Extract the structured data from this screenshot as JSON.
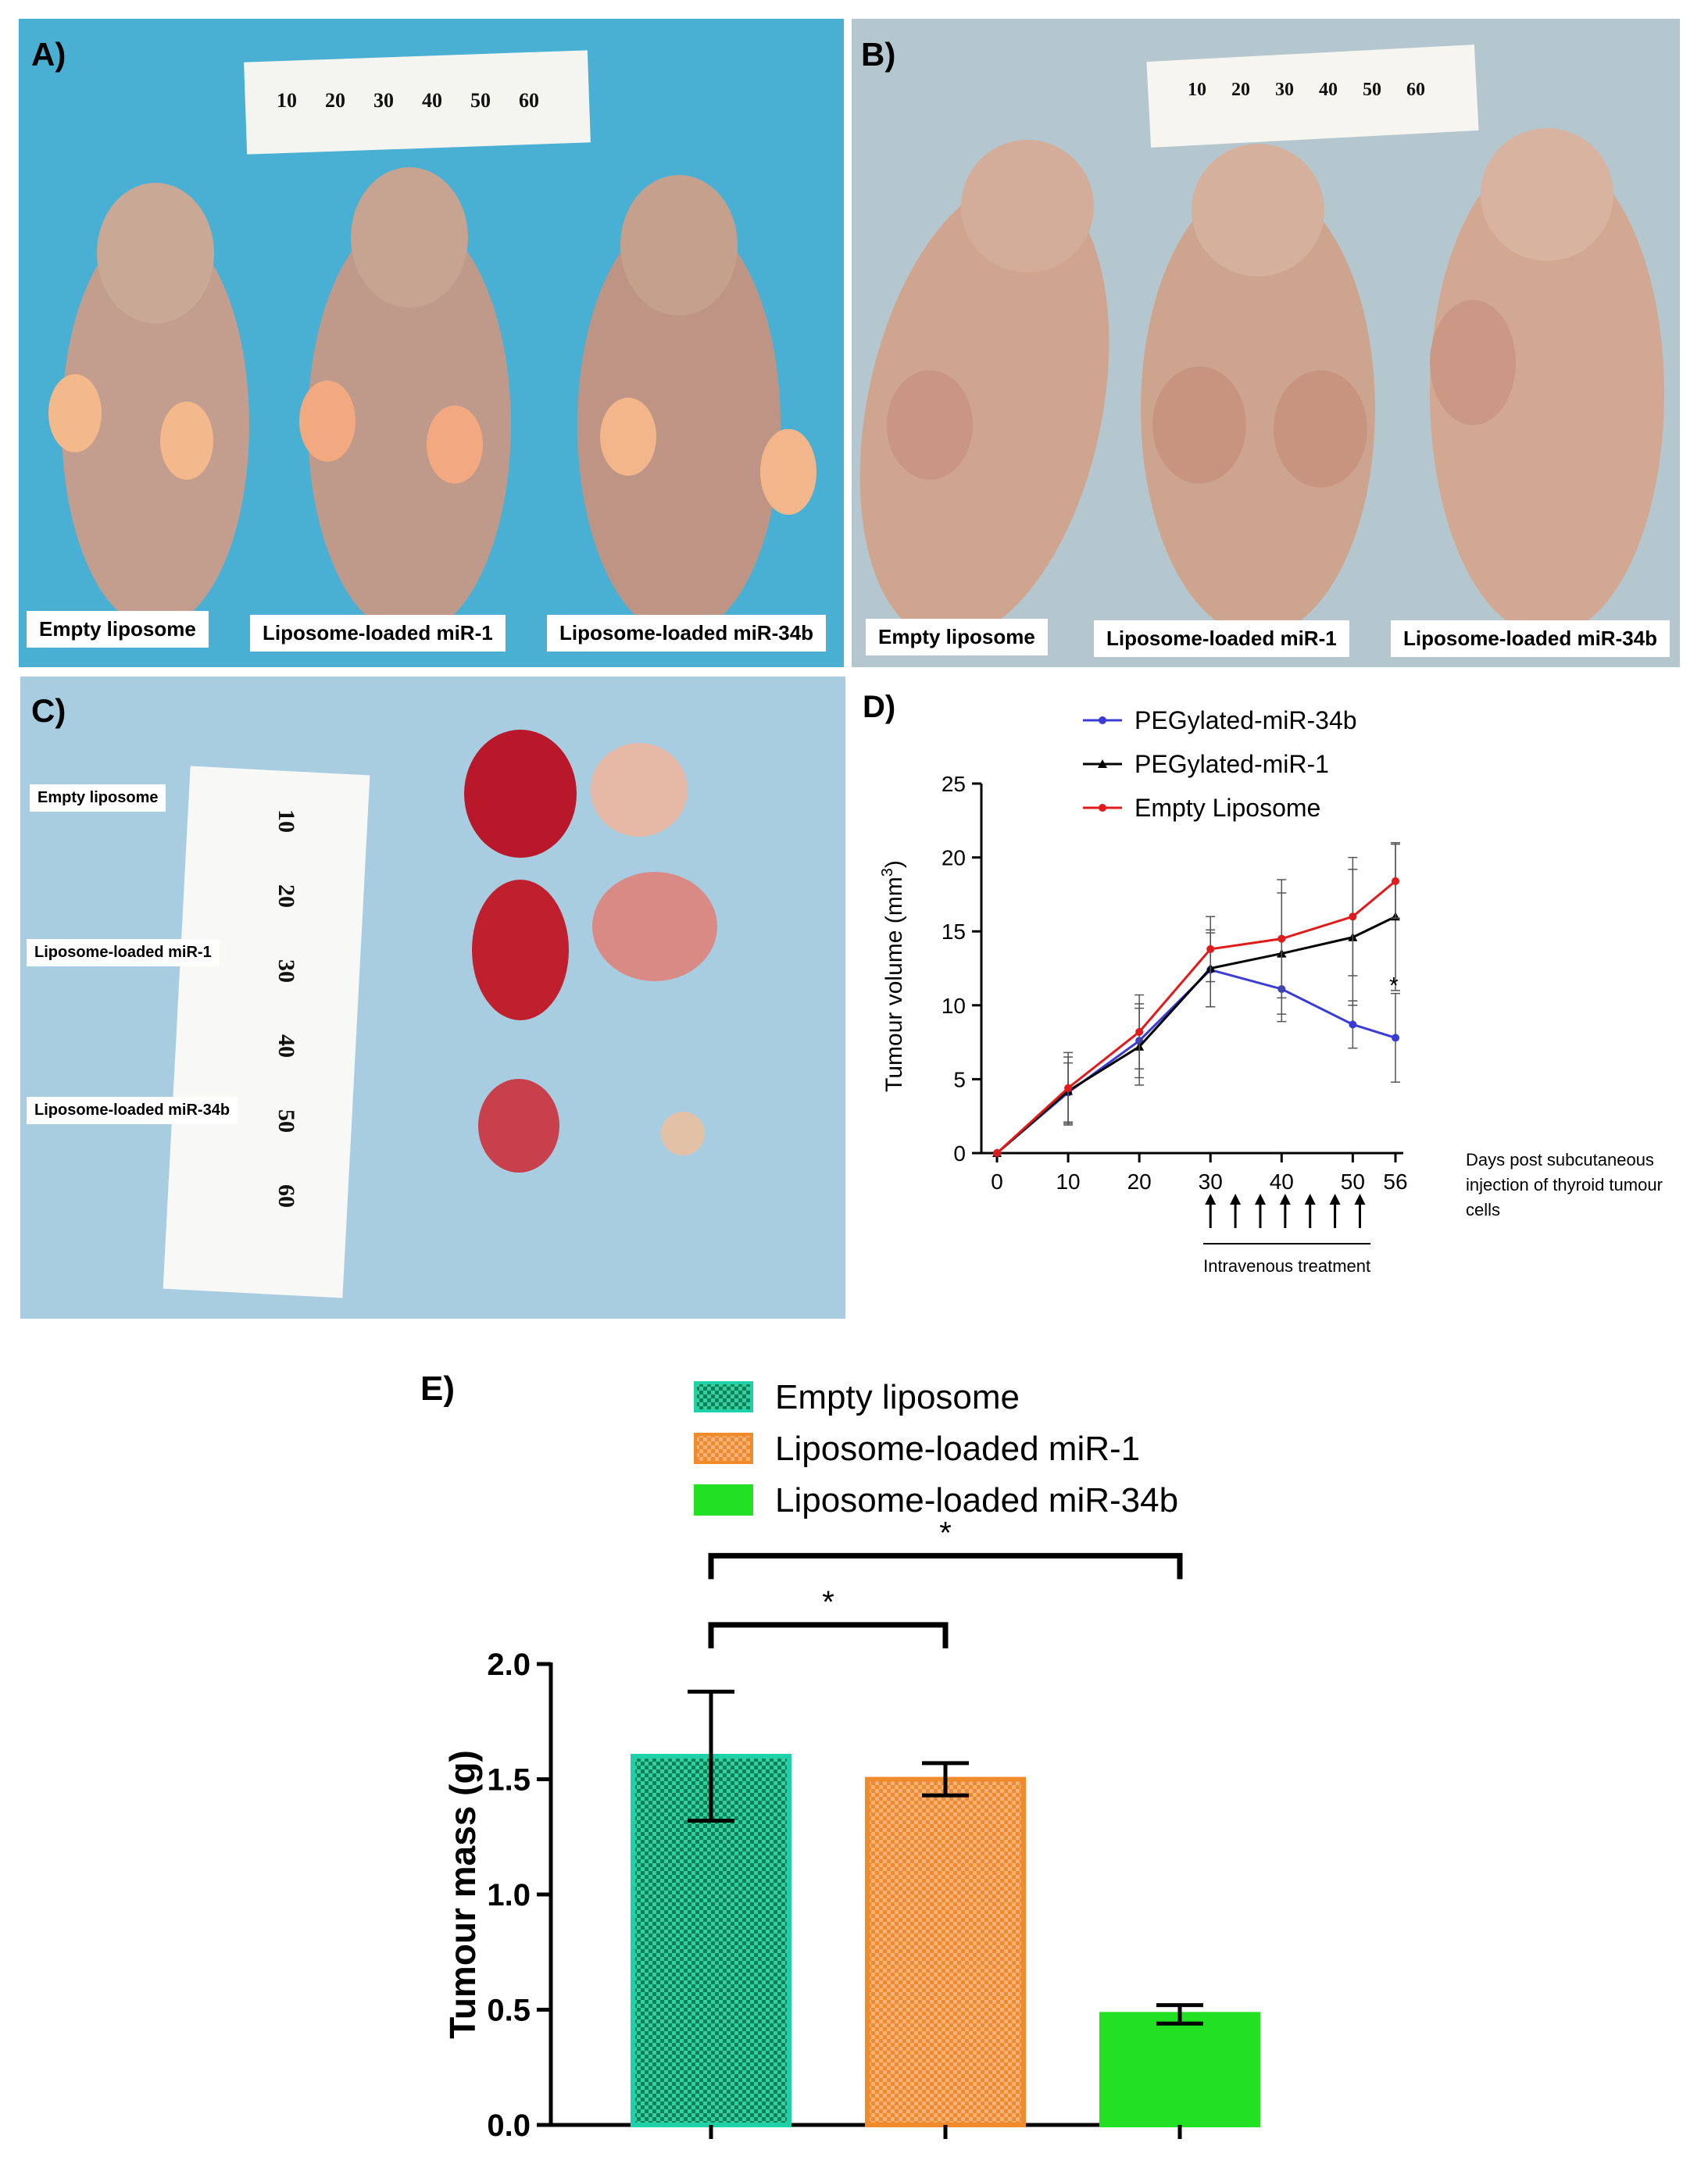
{
  "colors": {
    "photo_a_bg": "#4fb3d6",
    "photo_b_bg": "#b8c9cf",
    "photo_c_bg": "#a9cde0",
    "skin": "#c9a08c",
    "skin_b": "#d3ab98",
    "tumour_red": "#b8182a",
    "tumour_pale": "#e6b8a6",
    "line_blue": "#3b3bd6",
    "line_black": "#000000",
    "line_red": "#e01b1b",
    "bar_empty": "#1fd1a8",
    "bar_mir1": "#f08a2a",
    "bar_mir34b": "#22e022"
  },
  "panel_a": {
    "letter": "A)",
    "labels": [
      "Empty liposome",
      "Liposome-loaded miR-1",
      "Liposome-loaded miR-34b"
    ],
    "ruler_ticks": [
      "10",
      "20",
      "30",
      "40",
      "50",
      "60"
    ]
  },
  "panel_b": {
    "letter": "B)",
    "labels": [
      "Empty liposome",
      "Liposome-loaded miR-1",
      "Liposome-loaded miR-34b"
    ],
    "ruler_ticks": [
      "10",
      "20",
      "30",
      "40",
      "50",
      "60"
    ]
  },
  "panel_c": {
    "letter": "C)",
    "labels": [
      "Empty liposome",
      "Liposome-loaded miR-1",
      "Liposome-loaded miR-34b"
    ],
    "ruler_ticks": [
      "10",
      "20",
      "30",
      "40",
      "50",
      "60"
    ]
  },
  "chart_data": [
    {
      "panel": "D)",
      "type": "line",
      "title": "",
      "x": [
        0,
        10,
        20,
        30,
        40,
        50,
        56
      ],
      "xlim": [
        0,
        56
      ],
      "ylim": [
        0,
        25
      ],
      "yticks": [
        0,
        5,
        10,
        15,
        20,
        25
      ],
      "xticks": [
        0,
        10,
        20,
        30,
        40,
        50,
        56
      ],
      "ylabel": "Tumour volume (mm",
      "ylabel_sup": "3",
      "ylabel_close": ")",
      "xlabel_lines": [
        "Days post subcutaneous",
        "injection of thyroid tumour",
        "cells"
      ],
      "treatment_label": "Intravenous treatment",
      "treatment_days": [
        30,
        33.5,
        37,
        40.5,
        44,
        47.5,
        51
      ],
      "significance": "*",
      "series": [
        {
          "name": "PEGylated-miR-34b",
          "color_key": "line_blue",
          "marker": "dot",
          "values": [
            0,
            4.1,
            7.6,
            12.4,
            11.1,
            8.7,
            7.8
          ],
          "err": [
            0,
            2.0,
            2.5,
            2.5,
            2.2,
            1.6,
            3.0
          ]
        },
        {
          "name": "PEGylated-miR-1",
          "color_key": "line_black",
          "marker": "triangle",
          "values": [
            0,
            4.2,
            7.2,
            12.5,
            13.5,
            14.6,
            16.0
          ],
          "err": [
            0,
            2.3,
            2.6,
            2.6,
            4.1,
            4.6,
            5.0
          ]
        },
        {
          "name": "Empty Liposome",
          "color_key": "line_red",
          "marker": "dot",
          "values": [
            0,
            4.4,
            8.2,
            13.8,
            14.5,
            16.0,
            18.4
          ],
          "err": [
            0,
            2.4,
            2.5,
            2.2,
            4.0,
            4.0,
            2.5
          ]
        }
      ]
    },
    {
      "panel": "E)",
      "type": "bar",
      "title": "",
      "categories": [
        "Empty liposome",
        "Liposome-loaded miR-1",
        "Liposome-loaded miR-34b"
      ],
      "values": [
        1.6,
        1.5,
        0.48
      ],
      "err": [
        0.28,
        0.07,
        0.04
      ],
      "ylim": [
        0,
        2.0
      ],
      "yticks": [
        "0.0",
        "0.5",
        "1.0",
        "1.5",
        "2.0"
      ],
      "ylabel": "Tumour mass (g)",
      "colors_keys": [
        "bar_empty",
        "bar_mir1",
        "bar_mir34b"
      ],
      "significance": [
        {
          "from": 0,
          "to": 1,
          "label": "*"
        },
        {
          "from": 0,
          "to": 2,
          "label": "*"
        }
      ]
    }
  ]
}
